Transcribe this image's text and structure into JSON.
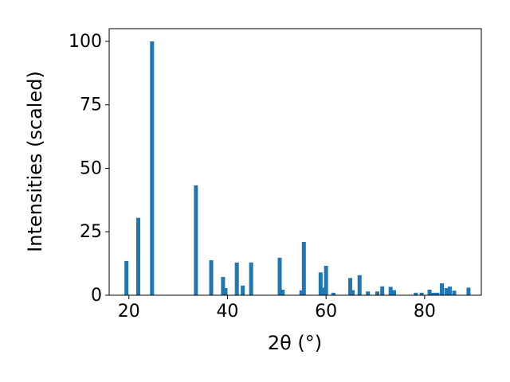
{
  "chart_data": {
    "type": "bar",
    "xlabel": "2θ (°)",
    "ylabel": "Intensities (scaled)",
    "x": [
      19.5,
      21.9,
      24.7,
      33.6,
      36.7,
      39.1,
      39.6,
      41.9,
      43.1,
      44.8,
      50.6,
      51.2,
      55.0,
      55.5,
      58.9,
      59.3,
      60.0,
      61.5,
      64.9,
      65.4,
      66.8,
      68.5,
      70.4,
      71.4,
      73.1,
      73.8,
      78.2,
      79.4,
      81.0,
      81.8,
      82.6,
      83.5,
      84.4,
      85.1,
      86.0,
      88.9
    ],
    "values": [
      13.5,
      30.5,
      100,
      43.3,
      13.8,
      7.2,
      2.8,
      12.9,
      3.8,
      12.9,
      14.8,
      2.2,
      1.9,
      21,
      9,
      3,
      11.6,
      1,
      6.8,
      2,
      7.9,
      1.5,
      1.5,
      3.5,
      3.3,
      2,
      1,
      1,
      2.2,
      1,
      1,
      4.7,
      2.8,
      3.4,
      1.8,
      3
    ],
    "color": "#1f77b4",
    "xlim": [
      16,
      91.5
    ],
    "ylim": [
      0,
      105
    ],
    "xticks": [
      20,
      40,
      60,
      80
    ],
    "yticks": [
      0,
      25,
      50,
      75,
      100
    ],
    "grid": false
  }
}
